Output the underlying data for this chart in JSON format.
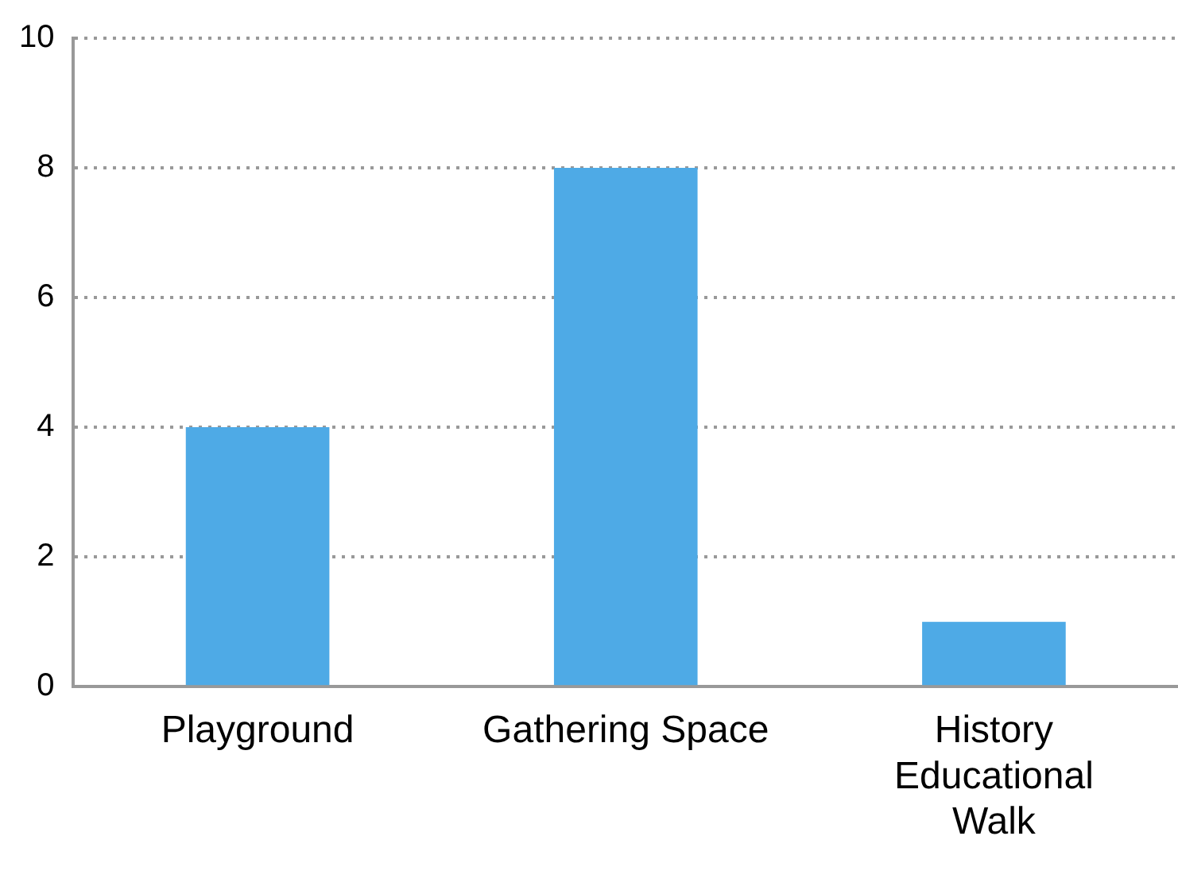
{
  "chart_data": {
    "type": "bar",
    "categories": [
      "Playground",
      "Gathering Space",
      "History Educational Walk"
    ],
    "values": [
      4,
      8,
      1
    ],
    "color": "#4eaae6",
    "ylim": [
      0,
      10
    ],
    "yticks": [
      0,
      2,
      4,
      6,
      8,
      10
    ],
    "grid": "y",
    "legend": false
  }
}
